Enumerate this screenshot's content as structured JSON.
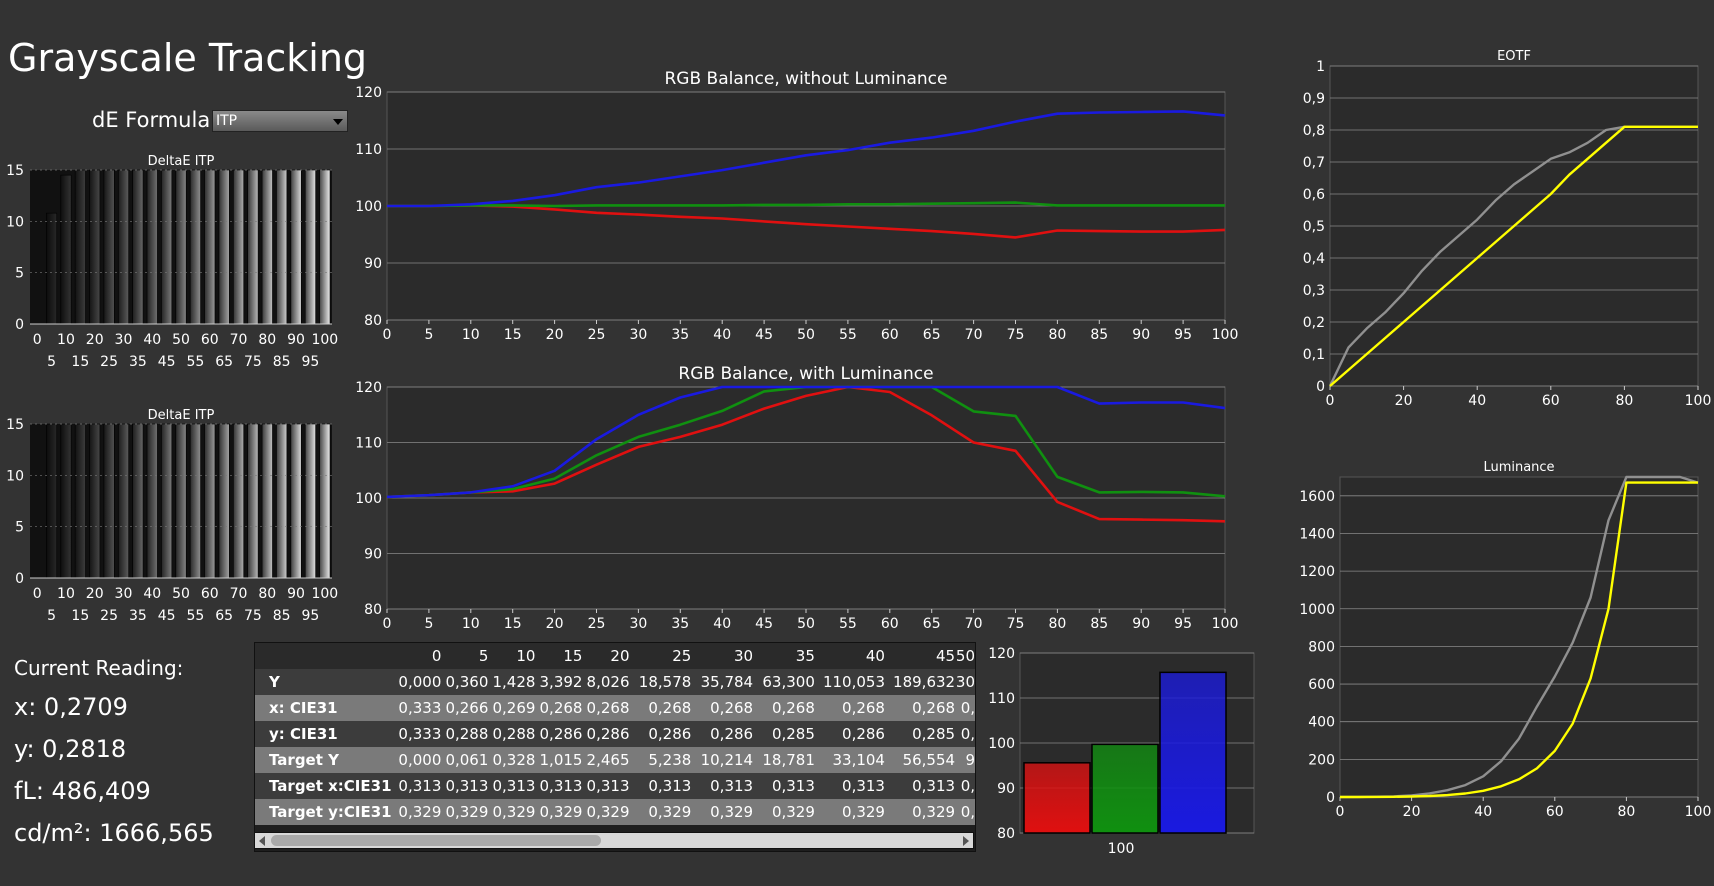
{
  "title": "Grayscale Tracking",
  "de_formula": {
    "label": "dE Formula:",
    "value": "ITP"
  },
  "current_reading": {
    "title": "Current Reading:",
    "x": "x: 0,2709",
    "y": "y: 0,2818",
    "fl": "fL: 486,409",
    "cdm2": "cd/m²: 1666,565"
  },
  "colors": {
    "background": "#333333",
    "plot_bg": "#2b2b2b",
    "red": "#e01010",
    "green": "#109010",
    "blue": "#1a1ae0",
    "yellow": "#ffff00",
    "gray": "#909090"
  },
  "table": {
    "columns": [
      "",
      "0",
      "5",
      "10",
      "15",
      "20",
      "25",
      "30",
      "35",
      "40",
      "45",
      "50"
    ],
    "rows": [
      {
        "label": "Y",
        "values": [
          "0,000",
          "0,360",
          "1,428",
          "3,392",
          "8,026",
          "18,578",
          "35,784",
          "63,300",
          "110,053",
          "189,632",
          "30"
        ]
      },
      {
        "label": "x: CIE31",
        "values": [
          "0,333",
          "0,266",
          "0,269",
          "0,268",
          "0,268",
          "0,268",
          "0,268",
          "0,268",
          "0,268",
          "0,268",
          "0,"
        ]
      },
      {
        "label": "y: CIE31",
        "values": [
          "0,333",
          "0,288",
          "0,288",
          "0,286",
          "0,286",
          "0,286",
          "0,286",
          "0,285",
          "0,286",
          "0,285",
          "0,"
        ]
      },
      {
        "label": "Target Y",
        "values": [
          "0,000",
          "0,061",
          "0,328",
          "1,015",
          "2,465",
          "5,238",
          "10,214",
          "18,781",
          "33,104",
          "56,554",
          "9"
        ]
      },
      {
        "label": "Target x:CIE31",
        "values": [
          "0,313",
          "0,313",
          "0,313",
          "0,313",
          "0,313",
          "0,313",
          "0,313",
          "0,313",
          "0,313",
          "0,313",
          "0,"
        ]
      },
      {
        "label": "Target y:CIE31",
        "values": [
          "0,329",
          "0,329",
          "0,329",
          "0,329",
          "0,329",
          "0,329",
          "0,329",
          "0,329",
          "0,329",
          "0,329",
          "0,"
        ]
      }
    ]
  },
  "chart_data": [
    {
      "id": "delta1",
      "type": "bar",
      "title": "DeltaE ITP",
      "categories": [
        "0",
        "5",
        "10",
        "15",
        "20",
        "25",
        "30",
        "35",
        "40",
        "45",
        "50",
        "55",
        "60",
        "65",
        "70",
        "75",
        "80",
        "85",
        "90",
        "95",
        "100"
      ],
      "values": [
        0,
        10.8,
        14.5,
        15,
        15,
        15,
        15,
        15,
        15,
        15,
        15,
        15,
        15,
        15,
        15,
        15,
        15,
        15,
        15,
        15,
        15
      ],
      "ylim": [
        0,
        15
      ],
      "yticks": [
        0,
        5,
        10,
        15
      ]
    },
    {
      "id": "delta2",
      "type": "bar",
      "title": "DeltaE ITP",
      "categories": [
        "0",
        "5",
        "10",
        "15",
        "20",
        "25",
        "30",
        "35",
        "40",
        "45",
        "50",
        "55",
        "60",
        "65",
        "70",
        "75",
        "80",
        "85",
        "90",
        "95",
        "100"
      ],
      "values": [
        0,
        15,
        15,
        15,
        15,
        15,
        15,
        15,
        15,
        15,
        15,
        15,
        15,
        15,
        15,
        15,
        15,
        15,
        15,
        15,
        15
      ],
      "ylim": [
        0,
        15
      ],
      "yticks": [
        0,
        5,
        10,
        15
      ]
    },
    {
      "id": "rgb1",
      "type": "line",
      "title": "RGB Balance, without Luminance",
      "x": [
        0,
        5,
        10,
        15,
        20,
        25,
        30,
        35,
        40,
        45,
        50,
        55,
        60,
        65,
        70,
        75,
        80,
        85,
        90,
        95,
        100
      ],
      "xlim": [
        0,
        100
      ],
      "ylim": [
        80,
        120
      ],
      "yticks": [
        80,
        90,
        100,
        110,
        120
      ],
      "series": [
        {
          "color": "red",
          "values": [
            100,
            100,
            100.1,
            99.9,
            99.4,
            98.8,
            98.5,
            98.1,
            97.8,
            97.3,
            96.8,
            96.4,
            96.0,
            95.6,
            95.1,
            94.5,
            95.7,
            95.6,
            95.5,
            95.5,
            95.8
          ]
        },
        {
          "color": "green",
          "values": [
            100,
            100,
            100.1,
            100.1,
            100,
            100.1,
            100.1,
            100.1,
            100.1,
            100.2,
            100.2,
            100.3,
            100.3,
            100.4,
            100.5,
            100.6,
            100.1,
            100.1,
            100.1,
            100.1,
            100.1
          ]
        },
        {
          "color": "blue",
          "values": [
            100,
            100,
            100.3,
            100.9,
            101.9,
            103.3,
            104.1,
            105.2,
            106.3,
            107.6,
            108.9,
            109.8,
            111.1,
            112.0,
            113.2,
            114.8,
            116.2,
            116.4,
            116.5,
            116.6,
            115.9
          ]
        }
      ]
    },
    {
      "id": "rgb2",
      "type": "line",
      "title": "RGB Balance, with Luminance",
      "x": [
        0,
        5,
        10,
        15,
        20,
        25,
        30,
        35,
        40,
        45,
        50,
        55,
        60,
        65,
        70,
        75,
        80,
        85,
        90,
        95,
        100
      ],
      "xlim": [
        0,
        100
      ],
      "ylim": [
        80,
        120
      ],
      "yticks": [
        80,
        90,
        100,
        110,
        120
      ],
      "series": [
        {
          "color": "red",
          "values": [
            100.2,
            100.5,
            101,
            101.2,
            102.6,
            106,
            109.2,
            111,
            113.2,
            116.1,
            118.4,
            120,
            119.1,
            114.9,
            110,
            108.5,
            99.3,
            96.2,
            96.1,
            96.0,
            95.8
          ]
        },
        {
          "color": "green",
          "values": [
            100.2,
            100.5,
            101,
            101.6,
            103.5,
            107.7,
            111,
            113.2,
            115.7,
            119.2,
            120,
            120,
            120,
            120,
            115.6,
            114.8,
            103.8,
            101,
            101.1,
            101.0,
            100.3
          ]
        },
        {
          "color": "blue",
          "values": [
            100.2,
            100.5,
            101,
            102.1,
            104.9,
            110.6,
            115,
            118.1,
            120,
            120,
            120,
            120,
            120,
            120,
            120,
            120,
            120,
            117,
            117.2,
            117.2,
            116.2
          ]
        }
      ]
    },
    {
      "id": "bars",
      "type": "bar",
      "categories": [
        "100"
      ],
      "series": [
        {
          "color": "red",
          "values": [
            95.6
          ]
        },
        {
          "color": "green",
          "values": [
            99.7
          ]
        },
        {
          "color": "blue",
          "values": [
            115.7
          ]
        }
      ],
      "ylim": [
        80,
        120
      ],
      "yticks": [
        80,
        90,
        100,
        110,
        120
      ]
    },
    {
      "id": "eotf",
      "type": "line",
      "title": "EOTF",
      "xlim": [
        0,
        100
      ],
      "ylim": [
        0,
        1
      ],
      "xticks": [
        0,
        20,
        40,
        60,
        80,
        100
      ],
      "yticks": [
        "0",
        "0,1",
        "0,2",
        "0,3",
        "0,4",
        "0,5",
        "0,6",
        "0,7",
        "0,8",
        "0,9",
        "1"
      ],
      "series": [
        {
          "color": "gray",
          "x": [
            0,
            5,
            10,
            15,
            20,
            25,
            30,
            35,
            40,
            45,
            50,
            55,
            60,
            65,
            70,
            75,
            80,
            85,
            90,
            95,
            100
          ],
          "values": [
            0,
            0.12,
            0.18,
            0.23,
            0.29,
            0.36,
            0.42,
            0.47,
            0.52,
            0.58,
            0.63,
            0.67,
            0.71,
            0.73,
            0.76,
            0.8,
            0.81,
            0.81,
            0.81,
            0.81,
            0.81
          ]
        },
        {
          "color": "yellow",
          "x": [
            0,
            5,
            10,
            15,
            20,
            25,
            30,
            35,
            40,
            45,
            50,
            55,
            60,
            65,
            70,
            75,
            80,
            85,
            90,
            95,
            100
          ],
          "values": [
            0,
            0.05,
            0.1,
            0.15,
            0.2,
            0.25,
            0.3,
            0.35,
            0.4,
            0.45,
            0.5,
            0.55,
            0.6,
            0.66,
            0.71,
            0.76,
            0.81,
            0.81,
            0.81,
            0.81,
            0.81
          ]
        }
      ]
    },
    {
      "id": "lum",
      "type": "line",
      "title": "Luminance",
      "xlim": [
        0,
        100
      ],
      "ylim": [
        0,
        1700
      ],
      "xticks": [
        0,
        20,
        40,
        60,
        80,
        100
      ],
      "yticks": [
        0,
        200,
        400,
        600,
        800,
        1000,
        1200,
        1400,
        1600
      ],
      "series": [
        {
          "color": "gray",
          "x": [
            0,
            5,
            10,
            15,
            20,
            25,
            30,
            35,
            40,
            45,
            50,
            55,
            60,
            65,
            70,
            75,
            80,
            85,
            90,
            95,
            100
          ],
          "values": [
            0,
            0.4,
            1.4,
            3.4,
            8,
            19,
            36,
            63,
            110,
            190,
            310,
            480,
            640,
            820,
            1060,
            1470,
            1700,
            1700,
            1700,
            1700,
            1670
          ]
        },
        {
          "color": "yellow",
          "x": [
            0,
            5,
            10,
            15,
            20,
            25,
            30,
            35,
            40,
            45,
            50,
            55,
            60,
            65,
            70,
            75,
            80,
            85,
            90,
            95,
            100
          ],
          "values": [
            0,
            0.06,
            0.33,
            1,
            2.5,
            5.2,
            10.2,
            18.8,
            33.1,
            56.6,
            94,
            152,
            245,
            390,
            630,
            1000,
            1670,
            1670,
            1670,
            1670,
            1670
          ]
        }
      ]
    }
  ]
}
